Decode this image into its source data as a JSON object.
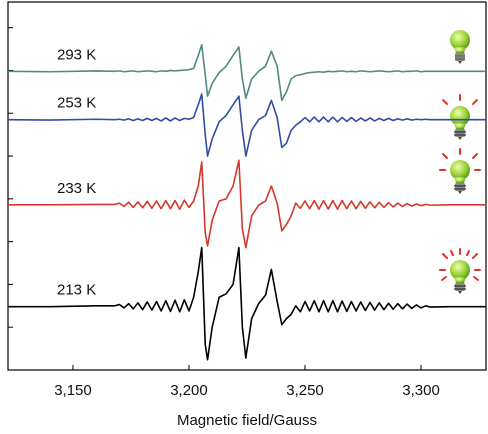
{
  "chart_data": {
    "type": "line",
    "x_label": "Magnetic field/Gauss",
    "x": [
      3122,
      3140,
      3160,
      3168,
      3170,
      3172,
      3174,
      3176,
      3178,
      3180,
      3182,
      3184,
      3186,
      3188,
      3190,
      3192,
      3194,
      3196,
      3198,
      3200,
      3202,
      3204,
      3205.5,
      3207,
      3208,
      3210,
      3213,
      3216,
      3219,
      3221.5,
      3223,
      3224.5,
      3227,
      3230,
      3233,
      3235.5,
      3238,
      3240,
      3242,
      3244,
      3246,
      3248,
      3250,
      3252,
      3254,
      3256,
      3258,
      3260,
      3262,
      3264,
      3266,
      3268,
      3270,
      3272,
      3274,
      3276,
      3278,
      3280,
      3282,
      3284,
      3286,
      3288,
      3290,
      3292,
      3294,
      3296,
      3298,
      3300,
      3302,
      3304,
      3312,
      3328
    ],
    "series": [
      {
        "name": "293 K",
        "color": "#4f8b82",
        "values": [
          6.98,
          6.97,
          6.99,
          6.98,
          6.99,
          6.97,
          6.98,
          6.99,
          6.97,
          6.98,
          6.99,
          6.98,
          6.97,
          6.99,
          6.98,
          7.0,
          6.99,
          7.0,
          7.01,
          7.02,
          7.05,
          7.35,
          7.6,
          6.9,
          6.4,
          6.7,
          6.95,
          7.1,
          7.35,
          7.55,
          6.8,
          6.35,
          6.8,
          6.98,
          7.1,
          7.45,
          7.1,
          6.3,
          6.5,
          6.8,
          6.88,
          6.9,
          6.93,
          6.95,
          6.96,
          6.97,
          6.96,
          6.98,
          6.97,
          6.98,
          6.99,
          6.97,
          6.98,
          6.97,
          6.99,
          6.98,
          6.97,
          6.98,
          6.99,
          6.98,
          6.97,
          6.98,
          6.99,
          6.97,
          6.98,
          6.98,
          6.99,
          6.97,
          6.98,
          6.98,
          6.98,
          6.98
        ]
      },
      {
        "name": "253 K",
        "color": "#2f4ea6",
        "values": [
          5.85,
          5.84,
          5.86,
          5.85,
          5.86,
          5.84,
          5.87,
          5.83,
          5.87,
          5.83,
          5.88,
          5.83,
          5.88,
          5.82,
          5.89,
          5.82,
          5.89,
          5.83,
          5.88,
          5.86,
          5.9,
          6.2,
          6.45,
          5.5,
          5.0,
          5.4,
          5.8,
          5.95,
          6.2,
          6.4,
          5.6,
          5.0,
          5.6,
          5.85,
          5.95,
          6.3,
          5.9,
          5.2,
          5.3,
          5.6,
          5.72,
          5.8,
          5.9,
          5.8,
          5.91,
          5.8,
          5.91,
          5.8,
          5.91,
          5.8,
          5.9,
          5.81,
          5.9,
          5.81,
          5.89,
          5.82,
          5.89,
          5.82,
          5.88,
          5.83,
          5.88,
          5.83,
          5.87,
          5.84,
          5.87,
          5.84,
          5.86,
          5.85,
          5.86,
          5.85,
          5.85,
          5.85
        ]
      },
      {
        "name": "233 K",
        "color": "#d2382d",
        "values": [
          3.86,
          3.86,
          3.87,
          3.87,
          3.9,
          3.82,
          3.92,
          3.8,
          3.93,
          3.79,
          3.94,
          3.78,
          3.95,
          3.77,
          3.96,
          3.77,
          3.96,
          3.76,
          3.97,
          3.8,
          3.95,
          4.3,
          4.86,
          3.2,
          2.9,
          3.5,
          3.95,
          4.0,
          4.3,
          4.9,
          3.3,
          2.86,
          3.6,
          3.85,
          3.95,
          4.3,
          3.9,
          3.25,
          3.4,
          3.6,
          3.9,
          3.78,
          3.95,
          3.77,
          3.96,
          3.76,
          3.96,
          3.76,
          3.96,
          3.76,
          3.96,
          3.77,
          3.95,
          3.77,
          3.94,
          3.78,
          3.93,
          3.79,
          3.92,
          3.8,
          3.91,
          3.81,
          3.9,
          3.82,
          3.89,
          3.83,
          3.88,
          3.84,
          3.87,
          3.85,
          3.86,
          3.86
        ]
      },
      {
        "name": "213 K",
        "color": "#000000",
        "values": [
          1.48,
          1.48,
          1.5,
          1.5,
          1.53,
          1.45,
          1.55,
          1.43,
          1.57,
          1.41,
          1.59,
          1.4,
          1.6,
          1.38,
          1.62,
          1.37,
          1.63,
          1.36,
          1.64,
          1.38,
          1.7,
          2.3,
          2.86,
          0.6,
          0.24,
          1.0,
          1.7,
          1.78,
          2.0,
          2.86,
          1.0,
          0.28,
          1.2,
          1.55,
          1.75,
          2.35,
          1.6,
          1.06,
          1.2,
          1.3,
          1.5,
          1.36,
          1.6,
          1.38,
          1.62,
          1.36,
          1.62,
          1.36,
          1.62,
          1.36,
          1.61,
          1.37,
          1.6,
          1.38,
          1.59,
          1.39,
          1.58,
          1.4,
          1.57,
          1.41,
          1.56,
          1.42,
          1.55,
          1.43,
          1.54,
          1.44,
          1.52,
          1.45,
          1.5,
          1.47,
          1.48,
          1.48
        ]
      }
    ],
    "xlim": [
      3122,
      3328
    ],
    "xticks": [
      {
        "value": 3150,
        "label": "3,150"
      },
      {
        "value": 3200,
        "label": "3,200"
      },
      {
        "value": 3250,
        "label": "3,250"
      },
      {
        "value": 3300,
        "label": "3,300"
      }
    ],
    "ylim": [
      0,
      8.6
    ],
    "yticks": [
      1,
      2,
      3,
      4,
      5,
      6,
      7,
      8
    ]
  }
}
